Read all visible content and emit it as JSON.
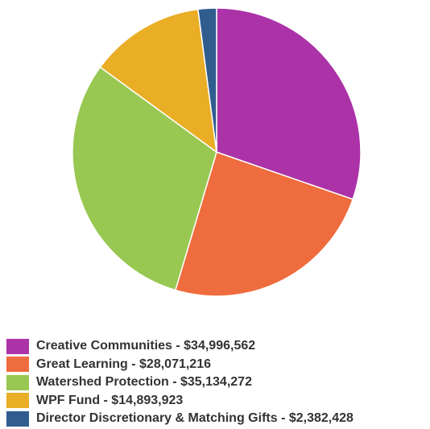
{
  "chart_data": {
    "type": "pie",
    "slices": [
      {
        "label": "Creative Communities - $34,996,562",
        "value": 34996562,
        "color": "#ab32a7"
      },
      {
        "label": "Great Learning - $28,071,216",
        "value": 28071216,
        "color": "#ee6c3d"
      },
      {
        "label": "Watershed Protection - $35,134,272",
        "value": 35134272,
        "color": "#98c851"
      },
      {
        "label": "WPF Fund - $14,893,923",
        "value": 14893923,
        "color": "#e9ae26"
      },
      {
        "label": "Director Discretionary & Matching Gifts - $2,382,428",
        "value": 2382428,
        "color": "#2f5d8e"
      }
    ],
    "legend_position": "bottom-left",
    "start_angle_deg": 0,
    "direction": "clockwise"
  }
}
